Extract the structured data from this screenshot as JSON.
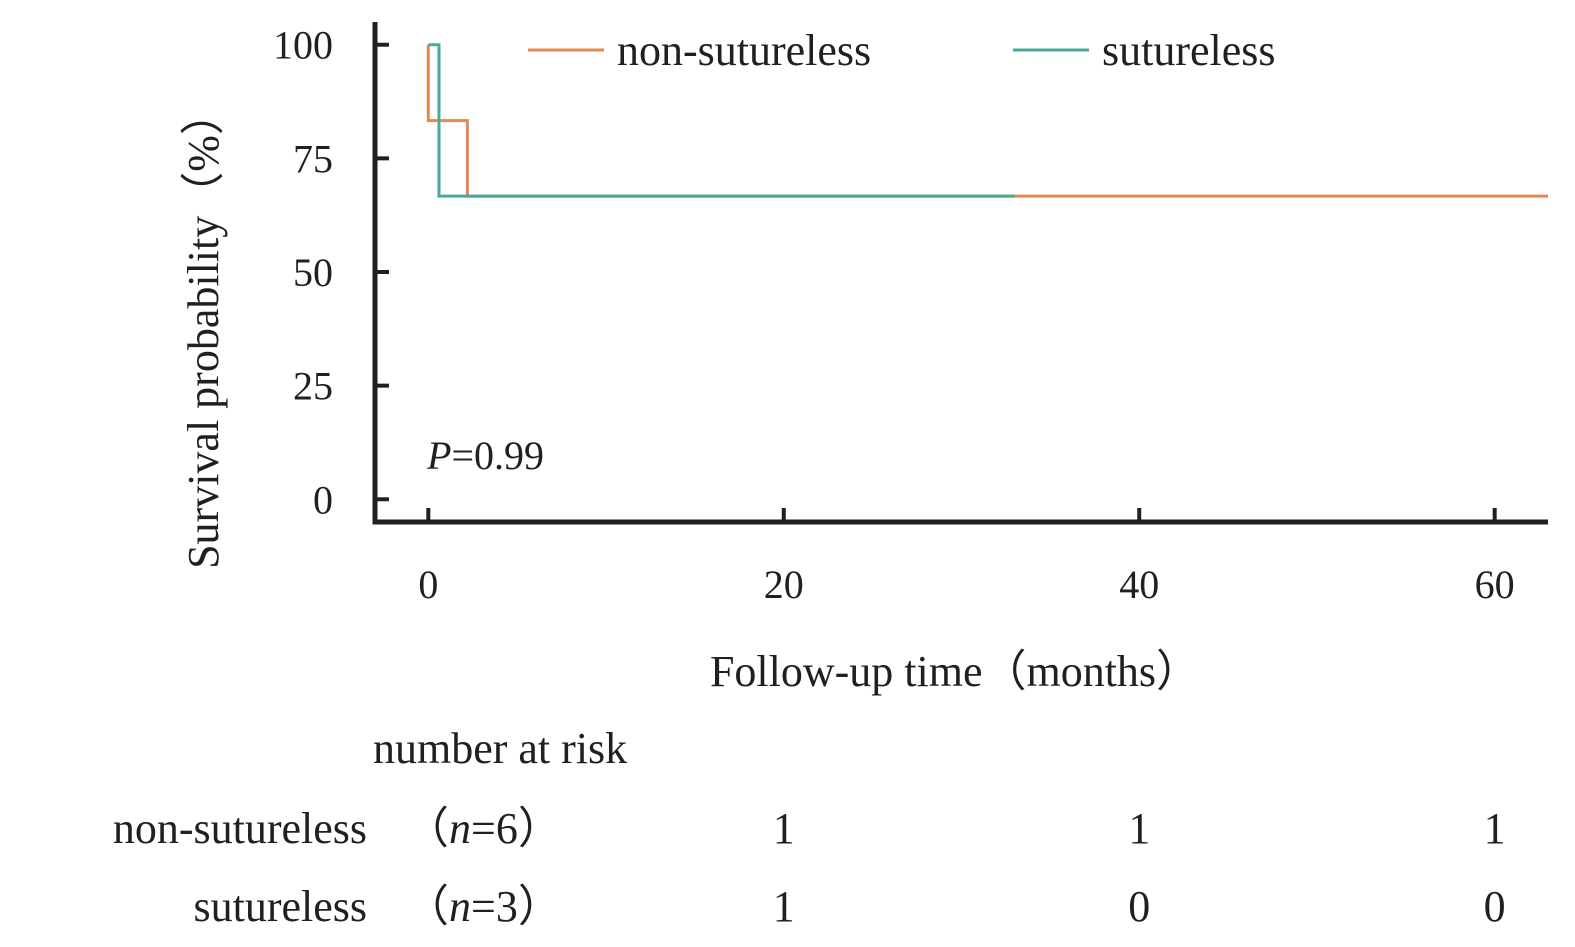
{
  "chart_data": {
    "type": "line",
    "subtype": "kaplan-meier",
    "xlabel": "Follow-up time（months）",
    "ylabel": "Survival probability（%）",
    "xlim": [
      -3,
      63
    ],
    "ylim": [
      -5,
      105
    ],
    "xticks": [
      0,
      20,
      40,
      60
    ],
    "yticks": [
      0,
      25,
      50,
      75,
      100
    ],
    "grid": false,
    "legend_position": "top",
    "annotation": {
      "prefix": "P",
      "text": "=0.99"
    },
    "series": [
      {
        "name": "non-sutureless",
        "color": "#e08a55",
        "steps": [
          [
            0,
            100
          ],
          [
            0,
            83.3
          ],
          [
            2.2,
            83.3
          ],
          [
            2.2,
            66.7
          ],
          [
            63,
            66.7
          ]
        ]
      },
      {
        "name": "sutureless",
        "color": "#4aaa9a",
        "steps": [
          [
            0,
            100
          ],
          [
            0.6,
            100
          ],
          [
            0.6,
            66.7
          ],
          [
            33,
            66.7
          ]
        ]
      }
    ],
    "risk_table": {
      "title": "number at risk",
      "times": [
        20,
        40,
        60
      ],
      "rows": [
        {
          "label": "non-sutureless",
          "n_prefix": "（",
          "n_var": "n",
          "n_suffix": "=6）",
          "counts": [
            "1",
            "1",
            "1"
          ]
        },
        {
          "label": "sutureless",
          "n_prefix": "（",
          "n_var": "n",
          "n_suffix": "=3）",
          "counts": [
            "1",
            "0",
            "0"
          ]
        }
      ]
    }
  }
}
